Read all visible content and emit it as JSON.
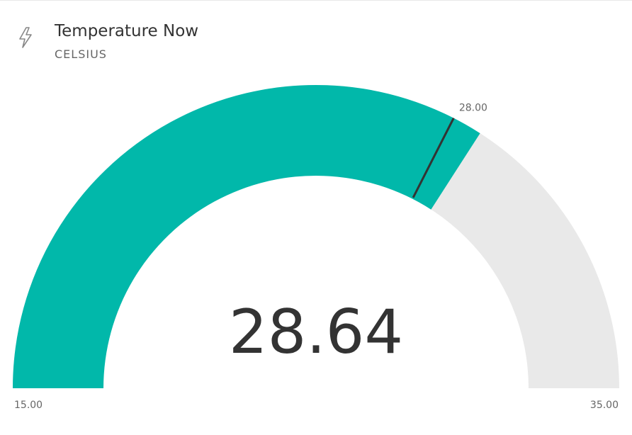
{
  "header": {
    "title": "Temperature Now",
    "subtitle": "CELSIUS",
    "icon": "lightning-bolt-icon"
  },
  "chart_data": {
    "type": "gauge",
    "value": 28.64,
    "value_label": "28.64",
    "min": 15.0,
    "min_label": "15.00",
    "max": 35.0,
    "max_label": "35.00",
    "target": 28.0,
    "target_label": "28.00",
    "colors": {
      "fill": "#01b8aa",
      "track": "#e9e9e9",
      "target": "#333333",
      "value_text": "#333333",
      "labels": "#666666"
    }
  }
}
